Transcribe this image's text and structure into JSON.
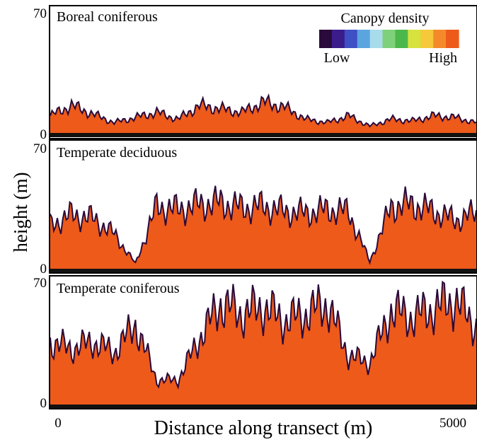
{
  "figure": {
    "ylabel": "height (m)",
    "xlabel": "Distance along transect (m)",
    "x_tick_labels": [
      "0",
      "5000"
    ]
  },
  "legend": {
    "title": "Canopy density",
    "low_label": "Low",
    "high_label": "High",
    "colors": [
      "#2a0a3a",
      "#3a1c8a",
      "#3f4fc4",
      "#5aa4e0",
      "#a8dcea",
      "#7fd07a",
      "#4cb84c",
      "#d7e23e",
      "#f5c93a",
      "#f58a2a",
      "#ee5a1a"
    ]
  },
  "chart_data": [
    {
      "type": "heatmap",
      "title": "Boreal coniferous",
      "xlim": [
        0,
        5000
      ],
      "ylim": [
        0,
        70
      ],
      "y_tick_labels": [
        "0",
        "70"
      ],
      "x": [
        0,
        250,
        500,
        750,
        1000,
        1250,
        1500,
        1750,
        2000,
        2250,
        2500,
        2750,
        3000,
        3250,
        3500,
        3750,
        4000,
        4250,
        4500,
        4750,
        5000
      ],
      "canopy_top": [
        10,
        16,
        11,
        6,
        9,
        12,
        8,
        16,
        14,
        12,
        18,
        15,
        8,
        6,
        10,
        4,
        8,
        7,
        10,
        9,
        6
      ]
    },
    {
      "type": "heatmap",
      "title": "Temperate deciduous",
      "xlim": [
        0,
        5000
      ],
      "ylim": [
        0,
        70
      ],
      "y_tick_labels": [
        "0"
      ],
      "x": [
        0,
        250,
        500,
        750,
        1000,
        1250,
        1500,
        1750,
        2000,
        2250,
        2500,
        2750,
        3000,
        3250,
        3500,
        3750,
        4000,
        4250,
        4500,
        4750,
        5000
      ],
      "canopy_top": [
        25,
        31,
        29,
        20,
        3,
        36,
        34,
        37,
        38,
        35,
        36,
        33,
        32,
        34,
        33,
        4,
        36,
        37,
        33,
        28,
        32
      ]
    },
    {
      "type": "heatmap",
      "title": "Temperate coniferous",
      "xlim": [
        0,
        5000
      ],
      "ylim": [
        0,
        70
      ],
      "y_tick_labels": [
        "0",
        "70"
      ],
      "x": [
        0,
        250,
        500,
        750,
        1000,
        1250,
        1500,
        1750,
        2000,
        2250,
        2500,
        2750,
        3000,
        3250,
        3500,
        3750,
        4000,
        4250,
        4500,
        4750,
        5000
      ],
      "canopy_top": [
        36,
        32,
        36,
        30,
        46,
        14,
        14,
        38,
        58,
        52,
        56,
        48,
        52,
        58,
        28,
        24,
        54,
        50,
        55,
        60,
        45
      ]
    }
  ]
}
